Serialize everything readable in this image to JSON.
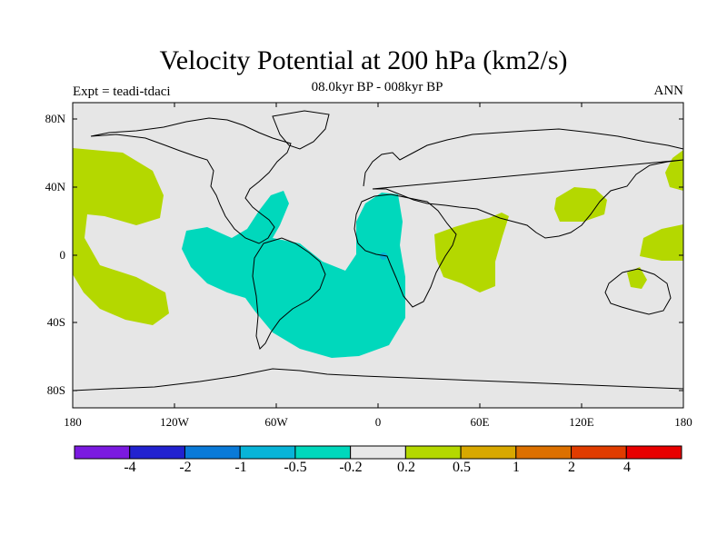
{
  "title": "Velocity Potential at 200 hPa (km2/s)",
  "subtitle": "08.0kyr BP - 008kyr BP",
  "left_label": "Expt = teadi-tdaci",
  "right_label": "ANN",
  "lat_labels": [
    "80N",
    "40N",
    "0",
    "40S",
    "80S"
  ],
  "lon_labels": [
    "180",
    "120W",
    "60W",
    "0",
    "60E",
    "120E",
    "180"
  ],
  "colorbar": {
    "labels": [
      "-4",
      "-2",
      "-1",
      "-0.5",
      "-0.2",
      "0.2",
      "0.5",
      "1",
      "2",
      "4"
    ],
    "colors": [
      "#7b1ae0",
      "#2222d0",
      "#0a7ad8",
      "#08b4d8",
      "#00d8bc",
      "#e8e8e8",
      "#b4d800",
      "#d8a800",
      "#dc7000",
      "#e03c00",
      "#e80000"
    ]
  },
  "colors": {
    "land_bg": "#e6e6e6",
    "negative_fill": "#00d8bc",
    "positive_fill": "#b4d800",
    "coast": "#000000"
  }
}
